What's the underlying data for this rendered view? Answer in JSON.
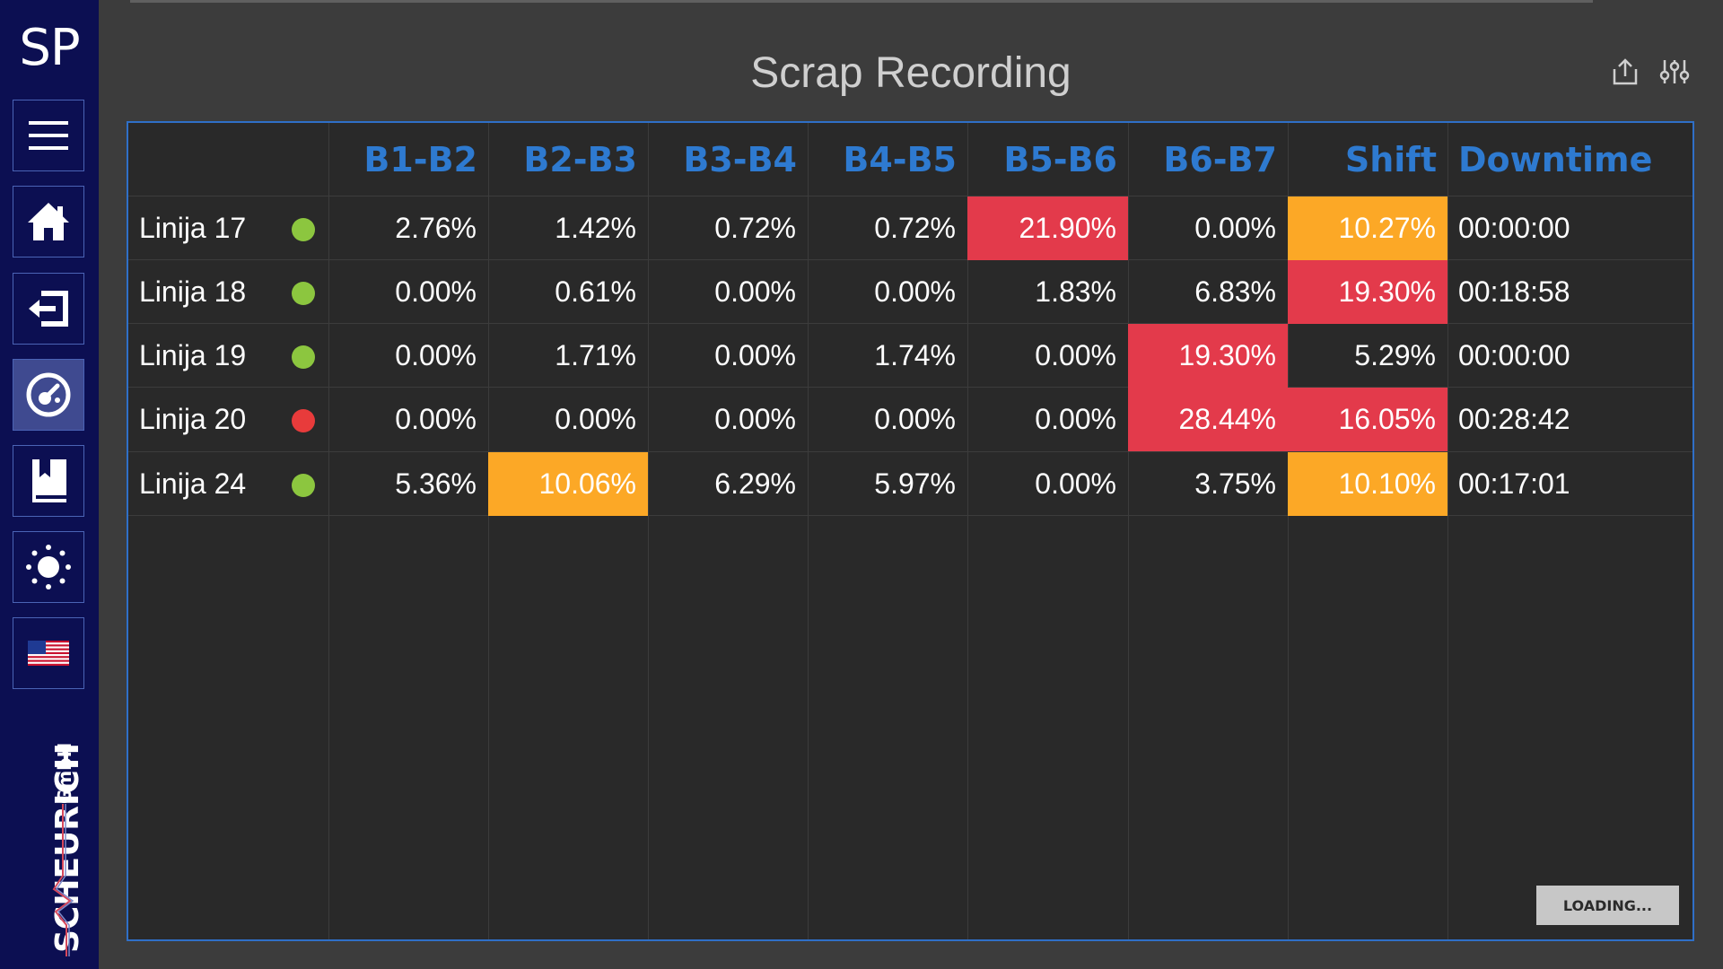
{
  "sidebar": {
    "logo_text": "SP",
    "items": [
      {
        "name": "menu",
        "icon": "hamburger-menu-icon"
      },
      {
        "name": "home",
        "icon": "home-icon"
      },
      {
        "name": "logout",
        "icon": "exit-icon"
      },
      {
        "name": "scrap",
        "icon": "gauge-icon",
        "active": true
      },
      {
        "name": "book",
        "icon": "book-icon"
      },
      {
        "name": "theme",
        "icon": "sun-icon"
      },
      {
        "name": "language",
        "icon": "us-flag-icon"
      }
    ],
    "brand": {
      "name": "SCHEURICH",
      "suffix": "GmbH"
    }
  },
  "header": {
    "title": "Scrap Recording",
    "actions": [
      {
        "name": "export",
        "icon": "share-export-icon"
      },
      {
        "name": "settings",
        "icon": "sliders-icon"
      }
    ]
  },
  "table": {
    "columns": [
      "",
      "B1-B2",
      "B2-B3",
      "B3-B4",
      "B4-B5",
      "B5-B6",
      "B6-B7",
      "Shift",
      "Downtime"
    ],
    "rows": [
      {
        "line": "Linija 17",
        "status": "running",
        "values": [
          "2.76%",
          "1.42%",
          "0.72%",
          "0.72%",
          "21.90%",
          "0.00%",
          "10.27%"
        ],
        "highlights": [
          "",
          "",
          "",
          "",
          "red",
          "",
          "orange"
        ],
        "downtime": "00:00:00"
      },
      {
        "line": "Linija 18",
        "status": "running",
        "values": [
          "0.00%",
          "0.61%",
          "0.00%",
          "0.00%",
          "1.83%",
          "6.83%",
          "19.30%"
        ],
        "highlights": [
          "",
          "",
          "",
          "",
          "",
          "",
          "red"
        ],
        "downtime": "00:18:58"
      },
      {
        "line": "Linija 19",
        "status": "running",
        "values": [
          "0.00%",
          "1.71%",
          "0.00%",
          "1.74%",
          "0.00%",
          "19.30%",
          "5.29%"
        ],
        "highlights": [
          "",
          "",
          "",
          "",
          "",
          "red",
          ""
        ],
        "downtime": "00:00:00"
      },
      {
        "line": "Linija 20",
        "status": "stopped",
        "values": [
          "0.00%",
          "0.00%",
          "0.00%",
          "0.00%",
          "0.00%",
          "28.44%",
          "16.05%"
        ],
        "highlights": [
          "",
          "",
          "",
          "",
          "",
          "red",
          "red"
        ],
        "downtime": "00:28:42"
      },
      {
        "line": "Linija 24",
        "status": "running",
        "values": [
          "5.36%",
          "10.06%",
          "6.29%",
          "5.97%",
          "0.00%",
          "3.75%",
          "10.10%"
        ],
        "highlights": [
          "",
          "orange",
          "",
          "",
          "",
          "",
          "orange"
        ],
        "downtime": "00:17:01"
      }
    ]
  },
  "status_colors": {
    "running": "#8cc63f",
    "stopped": "#e83b3b"
  },
  "highlight_colors": {
    "red": "#e33a4b",
    "orange": "#fca826"
  },
  "accent_color": "#2e7ad0",
  "loading_label": "LOADING..."
}
